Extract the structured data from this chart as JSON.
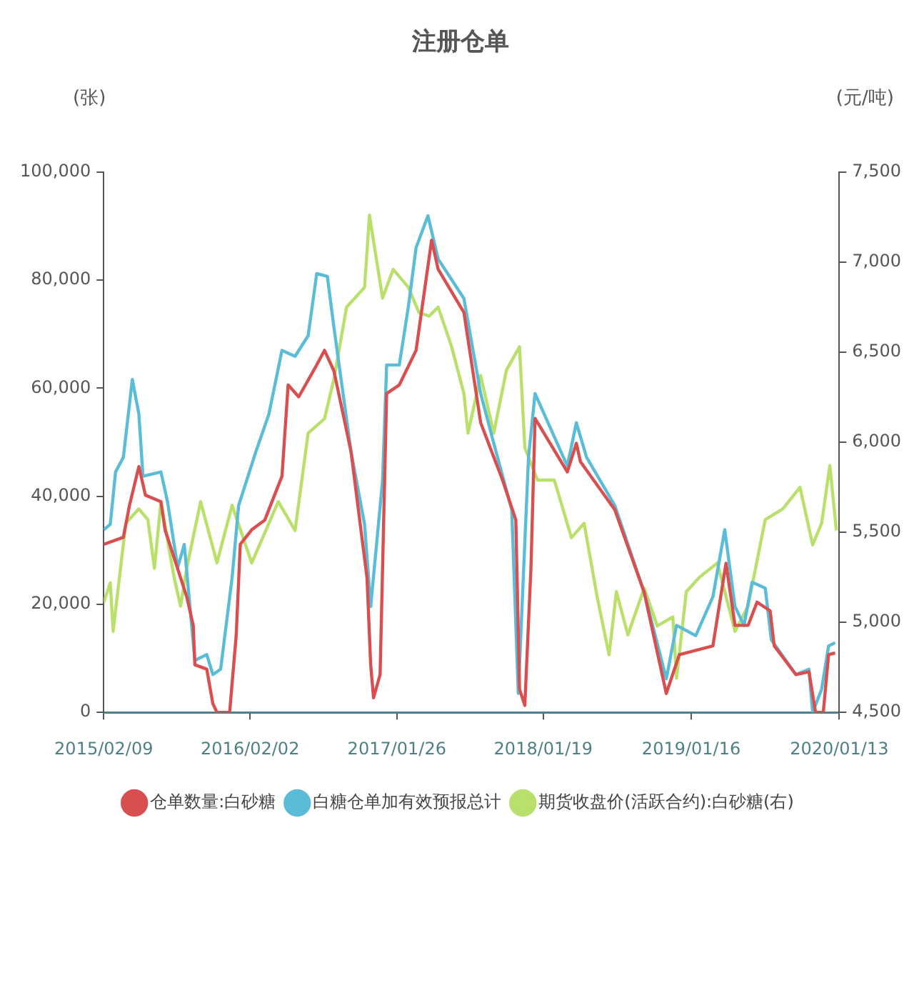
{
  "chart_data": {
    "type": "line",
    "title": "注册仓单",
    "ylabel": "(张)",
    "y2label": "(元/吨)",
    "xlim": [
      "2015-02-09",
      "2020-01-13"
    ],
    "xticks": [
      {
        "value": "2015-02-09",
        "label": "2015/02/09"
      },
      {
        "value": "2016-02-02",
        "label": "2016/02/02"
      },
      {
        "value": "2017-01-26",
        "label": "2017/01/26"
      },
      {
        "value": "2018-01-19",
        "label": "2018/01/19"
      },
      {
        "value": "2019-01-16",
        "label": "2019/01/16"
      },
      {
        "value": "2020-01-13",
        "label": "2020/01/13"
      }
    ],
    "ylim": [
      0,
      100000
    ],
    "yticks": [
      {
        "value": 0,
        "label": "0"
      },
      {
        "value": 20000,
        "label": "20,000"
      },
      {
        "value": 40000,
        "label": "40,000"
      },
      {
        "value": 60000,
        "label": "60,000"
      },
      {
        "value": 80000,
        "label": "80,000"
      },
      {
        "value": 100000,
        "label": "100,000"
      }
    ],
    "y2lim": [
      4500,
      7500
    ],
    "y2ticks": [
      {
        "value": 4500,
        "label": "4,500"
      },
      {
        "value": 5000,
        "label": "5,000"
      },
      {
        "value": 5500,
        "label": "5,500"
      },
      {
        "value": 6000,
        "label": "6,000"
      },
      {
        "value": 6500,
        "label": "6,500"
      },
      {
        "value": 7000,
        "label": "7,000"
      },
      {
        "value": 7500,
        "label": "7,500"
      }
    ],
    "grid": false,
    "legend": "bottom",
    "marker": "none",
    "line_style": "solid",
    "series": [
      {
        "name": "仓单数量:白砂糖",
        "color": "#d94f4f",
        "x": [
          "2015-02-09",
          "2015-03-29",
          "2015-04-13",
          "2015-05-06",
          "2015-05-22",
          "2015-06-29",
          "2015-07-09",
          "2015-08-31",
          "2015-09-16",
          "2015-09-20",
          "2015-10-19",
          "2015-11-03",
          "2015-11-13",
          "2015-12-14",
          "2015-12-30",
          "2016-01-09",
          "2016-02-06",
          "2016-03-09",
          "2016-04-20",
          "2016-05-05",
          "2016-05-31",
          "2016-07-14",
          "2016-08-02",
          "2016-08-25",
          "2016-10-06",
          "2016-11-14",
          "2016-11-23",
          "2016-11-30",
          "2016-12-16",
          "2017-01-01",
          "2017-02-01",
          "2017-03-14",
          "2017-04-21",
          "2017-05-07",
          "2017-07-09",
          "2017-08-19",
          "2017-10-12",
          "2017-11-13",
          "2017-11-22",
          "2017-12-05",
          "2017-12-20",
          "2017-12-30",
          "2018-03-19",
          "2018-04-10",
          "2018-04-20",
          "2018-07-13",
          "2018-09-23",
          "2018-11-16",
          "2018-12-18",
          "2019-03-10",
          "2019-04-11",
          "2019-05-03",
          "2019-06-04",
          "2019-06-26",
          "2019-07-28",
          "2019-08-07",
          "2019-09-29",
          "2019-10-31",
          "2019-11-16",
          "2019-12-05",
          "2019-12-18",
          "2020-01-03"
        ],
        "values": [
          31100,
          32400,
          38300,
          45500,
          40200,
          39000,
          33800,
          21400,
          16100,
          8800,
          8000,
          1600,
          0,
          0,
          14200,
          31100,
          33800,
          35600,
          43700,
          60600,
          58400,
          64300,
          67000,
          63200,
          48200,
          24900,
          8800,
          2700,
          7000,
          59000,
          60600,
          67000,
          87400,
          82000,
          74000,
          53600,
          42900,
          35600,
          4300,
          1300,
          26800,
          54400,
          44500,
          49800,
          46400,
          37500,
          22200,
          3500,
          10700,
          12300,
          27600,
          16100,
          16100,
          20400,
          18800,
          12300,
          7000,
          7500,
          0,
          0,
          10700,
          11000
        ]
      },
      {
        "name": "白糖仓单加有效预报总计",
        "color": "#5bbcd8",
        "x": [
          "2015-02-09",
          "2015-02-25",
          "2015-03-10",
          "2015-03-29",
          "2015-04-20",
          "2015-05-06",
          "2015-05-16",
          "2015-06-29",
          "2015-07-15",
          "2015-08-09",
          "2015-08-25",
          "2015-09-20",
          "2015-10-19",
          "2015-11-03",
          "2015-11-22",
          "2015-12-20",
          "2016-01-05",
          "2016-02-16",
          "2016-03-19",
          "2016-04-20",
          "2016-05-22",
          "2016-06-23",
          "2016-07-14",
          "2016-08-09",
          "2016-08-25",
          "2016-10-06",
          "2016-11-08",
          "2016-11-23",
          "2016-12-22",
          "2017-01-01",
          "2017-02-01",
          "2017-02-23",
          "2017-03-14",
          "2017-04-12",
          "2017-05-07",
          "2017-07-09",
          "2017-08-19",
          "2017-09-20",
          "2017-11-03",
          "2017-11-19",
          "2017-12-14",
          "2017-12-30",
          "2018-03-19",
          "2018-04-10",
          "2018-05-05",
          "2018-07-13",
          "2018-09-23",
          "2018-11-16",
          "2018-12-11",
          "2019-01-27",
          "2019-03-10",
          "2019-04-08",
          "2019-05-03",
          "2019-05-25",
          "2019-06-14",
          "2019-07-16",
          "2019-07-31",
          "2019-09-29",
          "2019-10-31",
          "2019-11-09",
          "2019-12-01",
          "2019-12-18",
          "2020-01-03"
        ],
        "values": [
          33800,
          34800,
          44500,
          47200,
          61600,
          55200,
          43700,
          44500,
          39000,
          26800,
          31100,
          9600,
          10700,
          7000,
          8000,
          24900,
          38300,
          48200,
          55200,
          67000,
          65900,
          69700,
          81200,
          80700,
          71300,
          48200,
          34800,
          19600,
          42900,
          64300,
          64300,
          75000,
          86000,
          91900,
          83900,
          76600,
          59000,
          49800,
          37500,
          3500,
          47200,
          59000,
          45600,
          53600,
          47200,
          38300,
          22200,
          6200,
          16100,
          14200,
          21400,
          33800,
          19600,
          16100,
          24100,
          23000,
          13400,
          7000,
          8000,
          0,
          4300,
          12300,
          12900
        ]
      },
      {
        "name": "期货收盘价(活跃合约):白砂糖(右)",
        "color": "#b8e06a",
        "axis": "y2",
        "x": [
          "2015-02-09",
          "2015-02-25",
          "2015-03-04",
          "2015-04-04",
          "2015-05-06",
          "2015-05-28",
          "2015-06-13",
          "2015-06-29",
          "2015-07-31",
          "2015-08-16",
          "2015-08-31",
          "2015-10-04",
          "2015-11-13",
          "2015-12-20",
          "2016-02-06",
          "2016-04-11",
          "2016-05-22",
          "2016-06-23",
          "2016-08-02",
          "2016-08-25",
          "2016-09-25",
          "2016-11-08",
          "2016-11-20",
          "2016-12-22",
          "2017-01-17",
          "2017-02-23",
          "2017-03-21",
          "2017-04-15",
          "2017-05-07",
          "2017-06-09",
          "2017-07-09",
          "2017-07-19",
          "2017-08-19",
          "2017-09-20",
          "2017-10-21",
          "2017-11-22",
          "2017-12-05",
          "2018-01-05",
          "2018-02-15",
          "2018-03-29",
          "2018-04-29",
          "2018-05-31",
          "2018-06-29",
          "2018-07-17",
          "2018-08-14",
          "2018-09-23",
          "2018-10-25",
          "2018-12-02",
          "2018-12-11",
          "2019-01-04",
          "2019-02-05",
          "2019-03-21",
          "2019-05-03",
          "2019-06-04",
          "2019-07-16",
          "2019-08-28",
          "2019-10-09",
          "2019-11-09",
          "2019-12-01",
          "2019-12-21",
          "2020-01-06"
        ],
        "values": [
          5110,
          5220,
          4950,
          5550,
          5630,
          5570,
          5300,
          5670,
          5250,
          5090,
          5300,
          5670,
          5330,
          5650,
          5330,
          5670,
          5510,
          6050,
          6130,
          6350,
          6750,
          6860,
          7260,
          6800,
          6960,
          6860,
          6720,
          6700,
          6750,
          6530,
          6270,
          6050,
          6370,
          6050,
          6400,
          6530,
          5970,
          5790,
          5790,
          5470,
          5550,
          5140,
          4820,
          5170,
          4930,
          5190,
          4980,
          5030,
          4690,
          5170,
          5250,
          5330,
          4950,
          5090,
          5570,
          5630,
          5750,
          5430,
          5550,
          5870,
          5510
        ]
      }
    ]
  }
}
